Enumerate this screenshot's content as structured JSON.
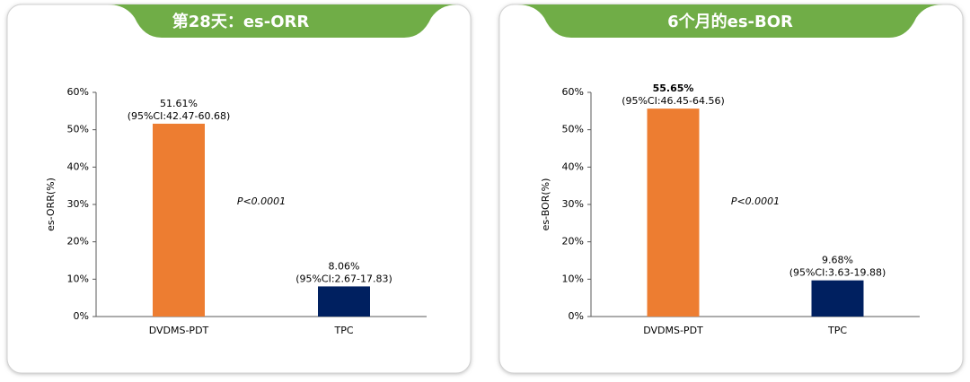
{
  "chart_data": [
    {
      "type": "bar",
      "title": "第28天：es-ORR",
      "y_label": "es-ORR(%)",
      "categories": [
        "DVDMS-PDT",
        "TPC"
      ],
      "values": [
        51.61,
        8.06
      ],
      "value_labels": [
        "51.61%",
        "8.06%"
      ],
      "value_label_colors": [
        "#ff0000",
        "#a6a6a6"
      ],
      "ci_labels": [
        "(95%CI:42.47-60.68)",
        "(95%CI:2.67-17.83)"
      ],
      "colors": [
        "#ed7d31",
        "#002060"
      ],
      "annotation": "P<0.0001",
      "ylim": [
        0,
        60
      ],
      "yticks": [
        {
          "value": 0,
          "label": "0%"
        },
        {
          "value": 10,
          "label": "10%"
        },
        {
          "value": 20,
          "label": "20%"
        },
        {
          "value": 30,
          "label": "30%"
        },
        {
          "value": 40,
          "label": "40%"
        },
        {
          "value": 50,
          "label": "50%"
        },
        {
          "value": 60,
          "label": "60%"
        }
      ]
    },
    {
      "type": "bar",
      "title": "6个月的es-BOR",
      "y_label": "es-BOR(%)",
      "categories": [
        "DVDMS-PDT",
        "TPC"
      ],
      "values": [
        55.65,
        9.68
      ],
      "value_labels": [
        "55.65%",
        "9.68%"
      ],
      "value_label_colors": [
        "#ff0000",
        "#7f7f7f"
      ],
      "ci_labels": [
        "(95%CI:46.45-64.56)",
        "(95%CI:3.63-19.88)"
      ],
      "colors": [
        "#ed7d31",
        "#002060"
      ],
      "annotation": "P<0.0001",
      "ylim": [
        0,
        60
      ],
      "yticks": [
        {
          "value": 0,
          "label": "0%"
        },
        {
          "value": 10,
          "label": "10%"
        },
        {
          "value": 20,
          "label": "20%"
        },
        {
          "value": 30,
          "label": "30%"
        },
        {
          "value": 40,
          "label": "40%"
        },
        {
          "value": 50,
          "label": "50%"
        },
        {
          "value": 60,
          "label": "60%"
        }
      ]
    }
  ]
}
